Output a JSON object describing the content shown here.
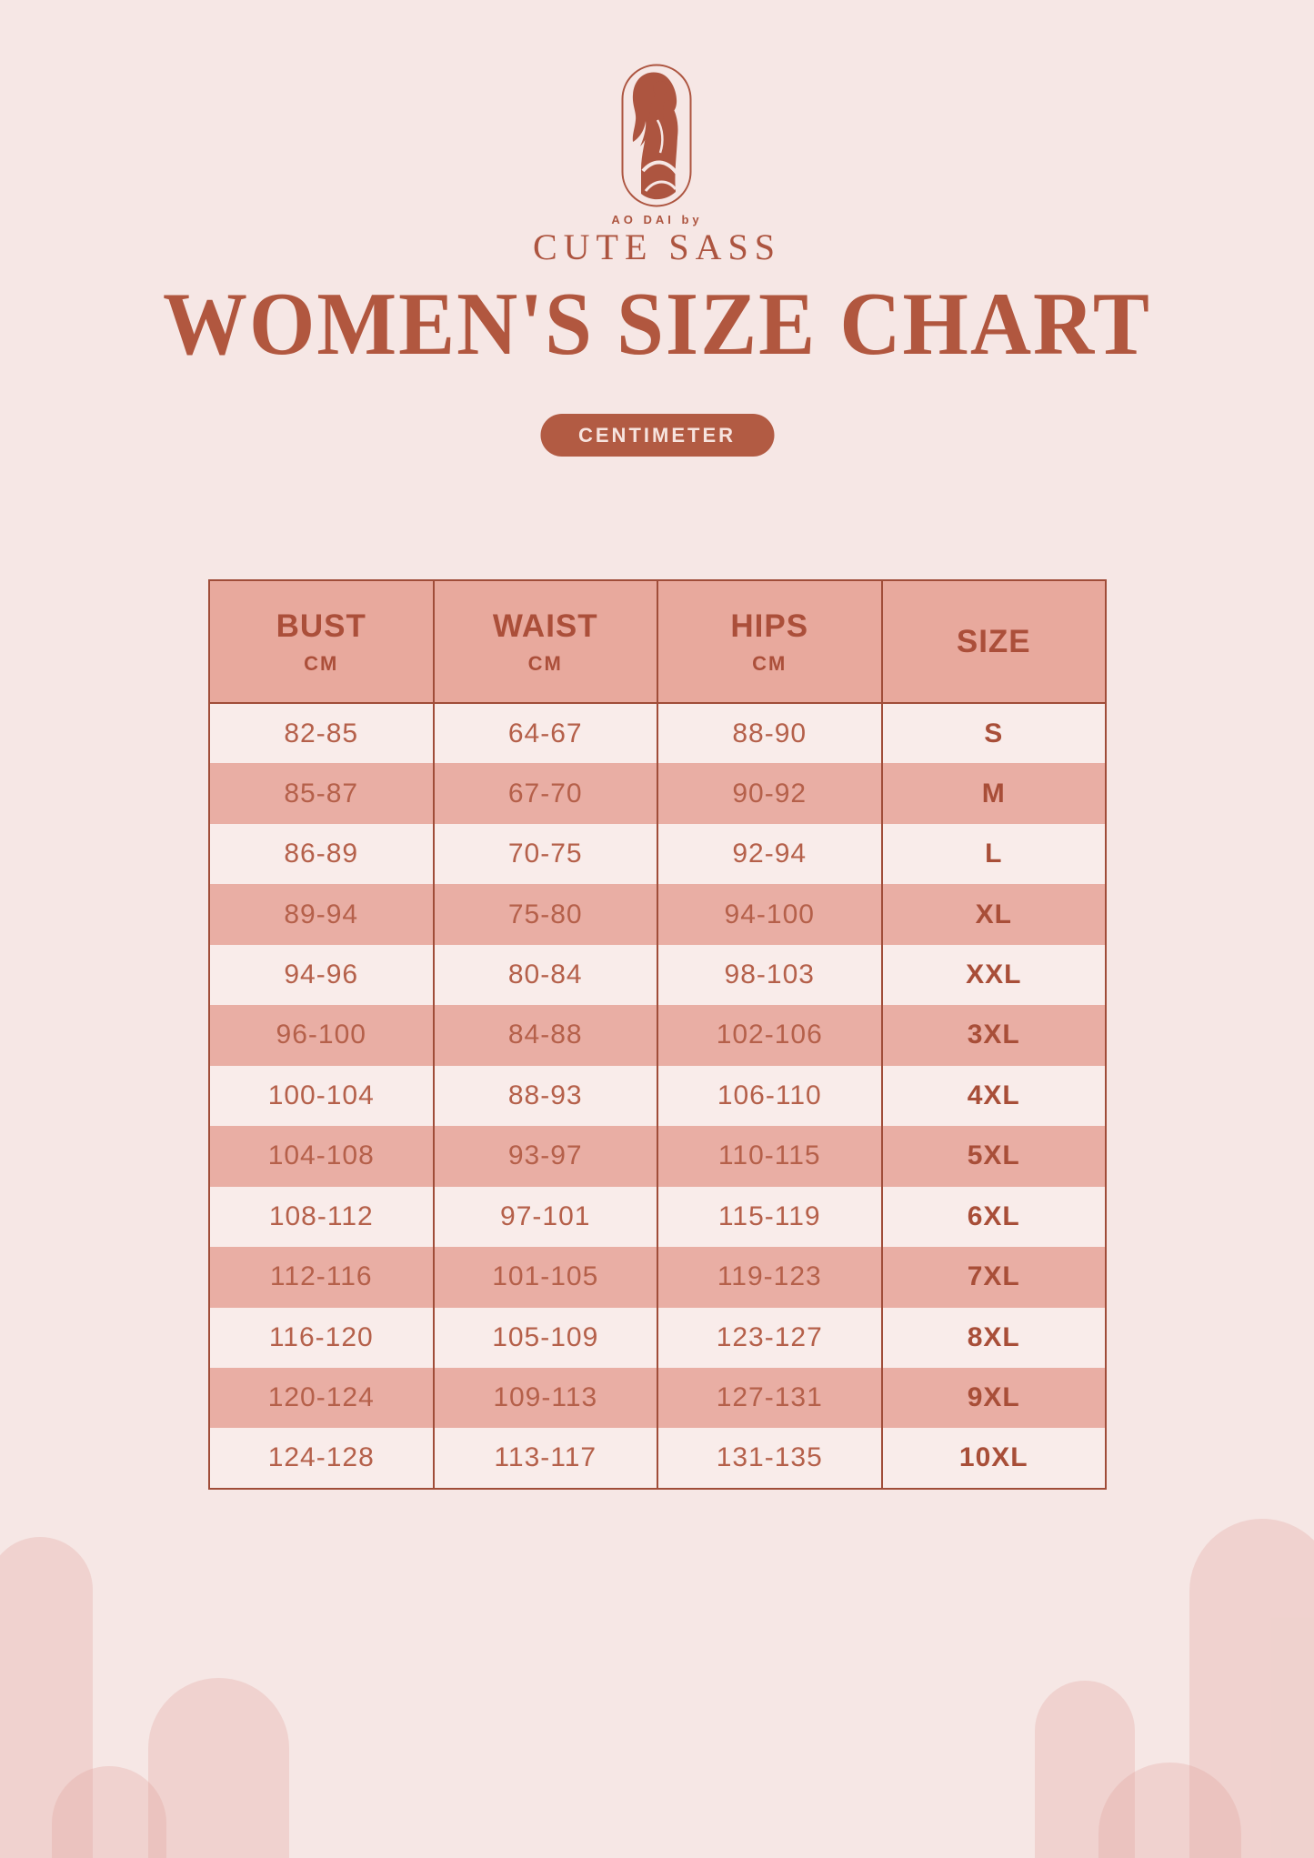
{
  "page": {
    "background": "#f6e7e5",
    "accent": "#ad5540"
  },
  "brand": {
    "tagline": "AO DAI by",
    "name": "CUTE SASS",
    "logo_icon": "ao-dai-woman-in-oval"
  },
  "title": "WOMEN'S SIZE CHART",
  "unit_badge": {
    "label": "CENTIMETER",
    "bg": "#b25b43",
    "text_color": "#f7e4df"
  },
  "table": {
    "colors": {
      "header_bg": "#e8a99d",
      "row_light": "#f9ecea",
      "row_dark": "#e9aea4",
      "border": "#a04d39"
    },
    "headers": [
      {
        "label": "BUST",
        "unit": "CM"
      },
      {
        "label": "WAIST",
        "unit": "CM"
      },
      {
        "label": "HIPS",
        "unit": "CM"
      },
      {
        "label": "SIZE",
        "unit": ""
      }
    ],
    "rows": [
      [
        "82-85",
        "64-67",
        "88-90",
        "S"
      ],
      [
        "85-87",
        "67-70",
        "90-92",
        "M"
      ],
      [
        "86-89",
        "70-75",
        "92-94",
        "L"
      ],
      [
        "89-94",
        "75-80",
        "94-100",
        "XL"
      ],
      [
        "94-96",
        "80-84",
        "98-103",
        "XXL"
      ],
      [
        "96-100",
        "84-88",
        "102-106",
        "3XL"
      ],
      [
        "100-104",
        "88-93",
        "106-110",
        "4XL"
      ],
      [
        "104-108",
        "93-97",
        "110-115",
        "5XL"
      ],
      [
        "108-112",
        "97-101",
        "115-119",
        "6XL"
      ],
      [
        "112-116",
        "101-105",
        "119-123",
        "7XL"
      ],
      [
        "116-120",
        "105-109",
        "123-127",
        "8XL"
      ],
      [
        "120-124",
        "109-113",
        "127-131",
        "9XL"
      ],
      [
        "124-128",
        "113-117",
        "131-135",
        "10XL"
      ]
    ]
  }
}
